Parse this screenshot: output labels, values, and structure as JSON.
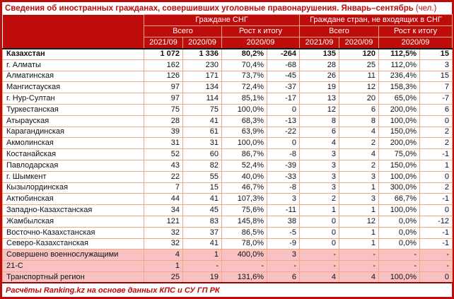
{
  "title": {
    "main": "Сведения об иностранных гражданах, совершивших уголовные правонарушения. Январь–сентябрь",
    "unit": "(чел.)"
  },
  "header": {
    "group_cis": "Граждане СНГ",
    "group_noncis": "Граждане стран, не входящих в СНГ",
    "total_label": "Всего",
    "growth_label": "Рост к итогу",
    "cis_col_2021": "2021/09",
    "cis_col_2020": "2020/09",
    "cis_growth_year": "2020/09",
    "noncis_col_2021": "2021/09",
    "noncis_col_2020": "2020/09",
    "noncis_growth_year": "2020/09"
  },
  "rows": [
    {
      "name": "Казахстан",
      "style": "bold",
      "values": [
        "1 072",
        "1 336",
        "80,2%",
        "-264",
        "135",
        "120",
        "112,5%",
        "15"
      ]
    },
    {
      "name": "г. Алматы",
      "style": "normal",
      "values": [
        "162",
        "230",
        "70,4%",
        "-68",
        "28",
        "25",
        "112,0%",
        "3"
      ]
    },
    {
      "name": "Алматинская",
      "style": "normal",
      "values": [
        "126",
        "171",
        "73,7%",
        "-45",
        "26",
        "11",
        "236,4%",
        "15"
      ]
    },
    {
      "name": "Мангистауская",
      "style": "normal",
      "values": [
        "97",
        "134",
        "72,4%",
        "-37",
        "19",
        "12",
        "158,3%",
        "7"
      ]
    },
    {
      "name": "г. Нур-Султан",
      "style": "normal",
      "values": [
        "97",
        "114",
        "85,1%",
        "-17",
        "13",
        "20",
        "65,0%",
        "-7"
      ]
    },
    {
      "name": "Туркестанская",
      "style": "normal",
      "values": [
        "75",
        "75",
        "100,0%",
        "0",
        "12",
        "6",
        "200,0%",
        "6"
      ]
    },
    {
      "name": "Атырауская",
      "style": "normal",
      "values": [
        "28",
        "41",
        "68,3%",
        "-13",
        "8",
        "8",
        "100,0%",
        "0"
      ]
    },
    {
      "name": "Карагандинская",
      "style": "normal",
      "values": [
        "39",
        "61",
        "63,9%",
        "-22",
        "6",
        "4",
        "150,0%",
        "2"
      ]
    },
    {
      "name": "Акмолинская",
      "style": "normal",
      "values": [
        "31",
        "31",
        "100,0%",
        "0",
        "4",
        "2",
        "200,0%",
        "2"
      ]
    },
    {
      "name": "Костанайская",
      "style": "normal",
      "values": [
        "52",
        "60",
        "86,7%",
        "-8",
        "3",
        "4",
        "75,0%",
        "-1"
      ]
    },
    {
      "name": "Павлодарская",
      "style": "normal",
      "values": [
        "43",
        "82",
        "52,4%",
        "-39",
        "3",
        "2",
        "150,0%",
        "1"
      ]
    },
    {
      "name": "г. Шымкент",
      "style": "normal",
      "values": [
        "22",
        "55",
        "40,0%",
        "-33",
        "3",
        "3",
        "100,0%",
        "0"
      ]
    },
    {
      "name": "Кызылординская",
      "style": "normal",
      "values": [
        "7",
        "15",
        "46,7%",
        "-8",
        "3",
        "1",
        "300,0%",
        "2"
      ]
    },
    {
      "name": "Актюбинская",
      "style": "normal",
      "values": [
        "44",
        "41",
        "107,3%",
        "3",
        "2",
        "3",
        "66,7%",
        "-1"
      ]
    },
    {
      "name": "Западно-Казахстанская",
      "style": "normal",
      "values": [
        "34",
        "45",
        "75,6%",
        "-11",
        "1",
        "1",
        "100,0%",
        "0"
      ]
    },
    {
      "name": "Жамбылская",
      "style": "normal",
      "values": [
        "121",
        "83",
        "145,8%",
        "38",
        "0",
        "12",
        "0,0%",
        "-12"
      ]
    },
    {
      "name": "Восточно-Казахстанская",
      "style": "normal",
      "values": [
        "32",
        "37",
        "86,5%",
        "-5",
        "0",
        "1",
        "0,0%",
        "-1"
      ]
    },
    {
      "name": "Северо-Казахстанская",
      "style": "normal",
      "values": [
        "32",
        "41",
        "78,0%",
        "-9",
        "0",
        "1",
        "0,0%",
        "-1"
      ]
    },
    {
      "name": "Совершено военнослужащими",
      "style": "pink",
      "values": [
        "4",
        "1",
        "400,0%",
        "3",
        "-",
        "-",
        "-",
        "-"
      ]
    },
    {
      "name": "21-С",
      "style": "pink",
      "values": [
        "1",
        "-",
        "-",
        "-",
        "-",
        "-",
        "-",
        "-"
      ]
    },
    {
      "name": "Транспортный регион",
      "style": "pink",
      "values": [
        "25",
        "19",
        "131,6%",
        "6",
        "4",
        "4",
        "100,0%",
        "0"
      ]
    }
  ],
  "footer": "Расчёты Ranking.kz на основе данных КПС и СУ ГП РК",
  "colors": {
    "header_red": "#BE0B0B",
    "dark_red_rule": "#9E0404",
    "pink_row": "#F8C2C2",
    "cell_border_salmon": "#F2A888"
  }
}
